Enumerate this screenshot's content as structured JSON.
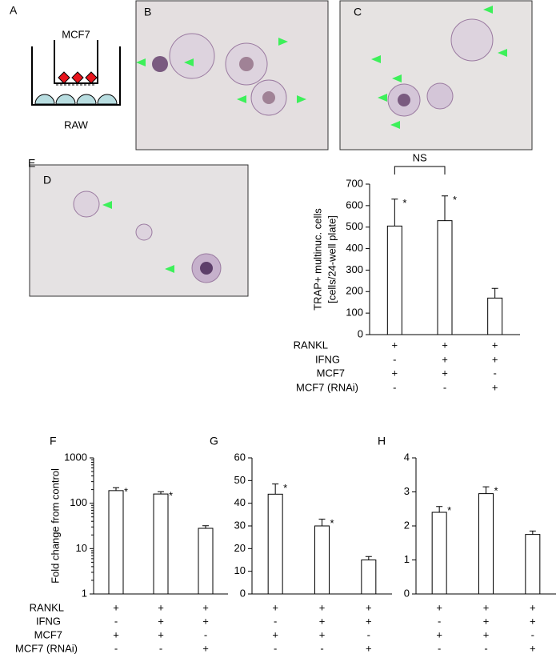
{
  "panels": {
    "a": "A",
    "b": "B",
    "c": "C",
    "d": "D"
  },
  "diagram": {
    "top": "MCF7",
    "bottom": "RAW"
  },
  "conditions": {
    "rows": [
      {
        "label": "RANKL",
        "marks": [
          "+",
          "+",
          "+"
        ]
      },
      {
        "label": "IFNG",
        "marks": [
          "-",
          "+",
          "+"
        ]
      },
      {
        "label": "MCF7",
        "marks": [
          "+",
          "+",
          "-"
        ]
      },
      {
        "label": "MCF7 (RNAi)",
        "marks": [
          "-",
          "-",
          "+"
        ]
      }
    ]
  },
  "chart_data": [
    {
      "type": "bar",
      "panel": "E",
      "y_label": [
        "TRAP+ multinuc. cells",
        "[cells/24-well plate]"
      ],
      "values": [
        505,
        530,
        170
      ],
      "errors": [
        125,
        115,
        45
      ],
      "markers": [
        "*",
        "*",
        null
      ],
      "bracket_label": "NS",
      "color": "#ffffff",
      "ylim": [
        0,
        700
      ],
      "yticks": [
        0,
        100,
        200,
        300,
        400,
        500,
        600,
        700
      ]
    },
    {
      "type": "bar",
      "panel": "F",
      "y_label": [
        "Fold change from control"
      ],
      "log_scale": true,
      "values": [
        190,
        160,
        28
      ],
      "errors": [
        30,
        20,
        4
      ],
      "markers": [
        "*",
        "*",
        null
      ],
      "color": "#ffffff",
      "ylim": [
        1,
        1000
      ],
      "yticks": [
        1,
        10,
        100,
        1000
      ]
    },
    {
      "type": "bar",
      "panel": "G",
      "values": [
        44,
        30,
        15
      ],
      "errors": [
        4.5,
        3,
        1.5
      ],
      "markers": [
        "*",
        "*",
        null
      ],
      "color": "#ffffff",
      "ylim": [
        0,
        60
      ],
      "yticks": [
        0,
        10,
        20,
        30,
        40,
        50,
        60
      ]
    },
    {
      "type": "bar",
      "panel": "H",
      "values": [
        2.4,
        2.95,
        1.75
      ],
      "errors": [
        0.17,
        0.2,
        0.1
      ],
      "markers": [
        "*",
        "*",
        null
      ],
      "color": "#ffffff",
      "ylim": [
        0,
        4
      ],
      "yticks": [
        0,
        1,
        2,
        3,
        4
      ]
    }
  ]
}
